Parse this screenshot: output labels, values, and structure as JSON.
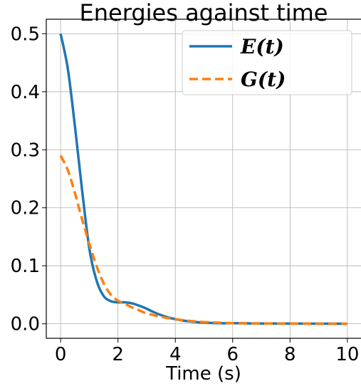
{
  "chart_data": {
    "type": "line",
    "title": "Energies against time",
    "xlabel": "Time (s)",
    "ylabel": "",
    "xlim": [
      -0.5,
      10.5
    ],
    "ylim": [
      -0.025,
      0.525
    ],
    "xticks": [
      0,
      2,
      4,
      6,
      8,
      10
    ],
    "xtick_labels": [
      "0",
      "2",
      "4",
      "6",
      "8",
      "10"
    ],
    "yticks": [
      0.0,
      0.1,
      0.2,
      0.3,
      0.4,
      0.5
    ],
    "ytick_labels": [
      "0.0",
      "0.1",
      "0.2",
      "0.3",
      "0.4",
      "0.5"
    ],
    "grid": true,
    "legend_position": "top-right",
    "series": [
      {
        "name": "E(t)",
        "color": "#1f77b4",
        "style": "solid",
        "x": [
          0,
          0.25,
          0.5,
          0.75,
          1.0,
          1.25,
          1.5,
          1.75,
          2.0,
          2.25,
          2.5,
          2.75,
          3.0,
          3.25,
          3.5,
          3.75,
          4.0,
          4.5,
          5.0,
          5.5,
          6.0,
          7.0,
          8.0,
          9.0,
          10.0
        ],
        "y": [
          0.5,
          0.44,
          0.34,
          0.23,
          0.13,
          0.075,
          0.048,
          0.039,
          0.037,
          0.037,
          0.035,
          0.031,
          0.026,
          0.02,
          0.015,
          0.011,
          0.008,
          0.004,
          0.002,
          0.001,
          0.001,
          0.0005,
          0.0003,
          0.0002,
          0.0001
        ]
      },
      {
        "name": "G(t)",
        "color": "#ff7f0e",
        "style": "dashed",
        "x": [
          0,
          0.25,
          0.5,
          0.75,
          1.0,
          1.25,
          1.5,
          1.75,
          2.0,
          2.25,
          2.5,
          2.75,
          3.0,
          3.5,
          4.0,
          4.5,
          5.0,
          5.5,
          6.0,
          7.0,
          8.0,
          9.0,
          10.0
        ],
        "y": [
          0.29,
          0.265,
          0.225,
          0.18,
          0.138,
          0.1,
          0.07,
          0.05,
          0.04,
          0.034,
          0.028,
          0.023,
          0.018,
          0.012,
          0.008,
          0.005,
          0.003,
          0.002,
          0.001,
          0.0005,
          0.0003,
          0.0002,
          0.0001
        ]
      }
    ]
  }
}
